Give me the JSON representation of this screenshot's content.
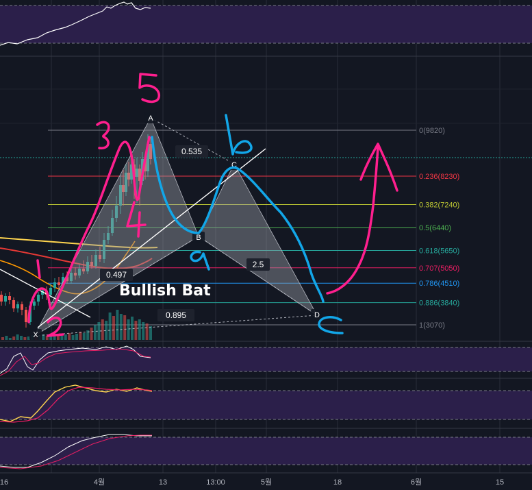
{
  "colors": {
    "background": "#131722",
    "grid": "#2a2e39",
    "oscillator_band": "#2b1f4a",
    "pink_annotation": "#ff1f8e",
    "blue_annotation": "#12a6e8",
    "harmonic_fill": "#9598a1"
  },
  "chart_data": {
    "type": "candlestick",
    "pattern_name": "Bullish Bat",
    "points": [
      {
        "label": "X"
      },
      {
        "label": "A"
      },
      {
        "label": "B"
      },
      {
        "label": "C"
      },
      {
        "label": "D"
      }
    ],
    "ratios": [
      "0.535",
      "0.497",
      "2.5",
      "0.895"
    ],
    "fib_levels": [
      {
        "label": "0(9820)",
        "ratio": 0,
        "price": 9820,
        "color": "#787b86"
      },
      {
        "label": "0.236(8230)",
        "ratio": 0.236,
        "price": 8230,
        "color": "#f23645"
      },
      {
        "label": "0.382(7240)",
        "ratio": 0.382,
        "price": 7240,
        "color": "#c0ca33"
      },
      {
        "label": "0.5(6440)",
        "ratio": 0.5,
        "price": 6440,
        "color": "#4caf50"
      },
      {
        "label": "0.618(5650)",
        "ratio": 0.618,
        "price": 5650,
        "color": "#26a69a"
      },
      {
        "label": "0.707(5050)",
        "ratio": 0.707,
        "price": 5050,
        "color": "#e91e63"
      },
      {
        "label": "0.786(4510)",
        "ratio": 0.786,
        "price": 4510,
        "color": "#2196f3"
      },
      {
        "label": "0.886(3840)",
        "ratio": 0.886,
        "price": 3840,
        "color": "#26a69a"
      },
      {
        "label": "1(3070)",
        "ratio": 1,
        "price": 3070,
        "color": "#787b86"
      }
    ],
    "x_tick_labels": [
      "16",
      "4월",
      "13",
      "13:00",
      "5월",
      "18",
      "6월",
      "15"
    ],
    "handwritten_annotations": [
      "1",
      "2",
      "3",
      "4",
      "5",
      "a",
      "b",
      "c"
    ]
  }
}
